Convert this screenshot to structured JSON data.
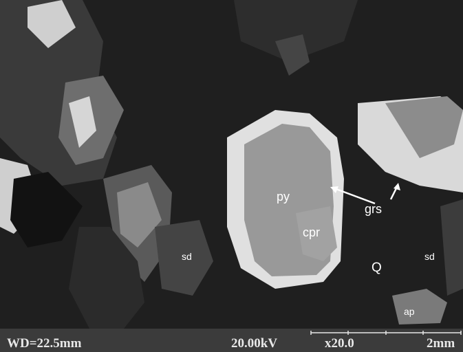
{
  "annotations": [
    "py",
    "cpr",
    "grs",
    "sd",
    "Q",
    "sd",
    "ap"
  ],
  "info_bar": {
    "working_distance": "WD=22.5mm",
    "voltage": "20.00kV",
    "magnification": "x20.0",
    "scale": "2mm"
  }
}
